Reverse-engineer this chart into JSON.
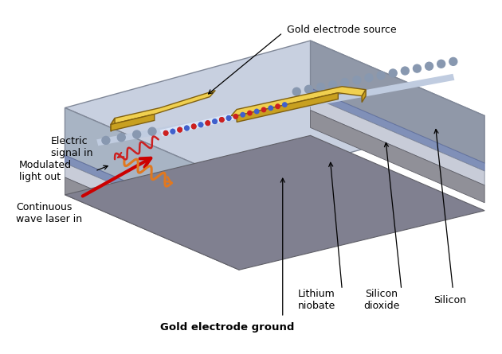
{
  "background_color": "#ffffff",
  "labels": {
    "gold_electrode_source": "Gold electrode source",
    "electric_signal_in": "Electric\nsignal in",
    "modulated_light_out": "Modulated\nlight out",
    "continuous_wave_laser_in": "Continuous\nwave laser in",
    "gold_electrode_ground": "Gold electrode ground",
    "lithium_niobate": "Lithium\nniobate",
    "silicon_dioxide": "Silicon\ndioxide",
    "silicon": "Silicon"
  },
  "colors": {
    "top_face": "#c8d0e0",
    "front_face": "#a8b4c4",
    "right_face": "#9098a8",
    "ln_layer": "#8090b8",
    "sio2_layer": "#c8ccd8",
    "si_layer": "#909098",
    "gold_top": "#f0d050",
    "gold_side": "#c8a020",
    "gold_edge": "#806010",
    "red_arrow": "#cc0000",
    "orange_wave": "#e07820",
    "red_wave": "#cc2020",
    "dots_color": "#8898b0",
    "wg_glow": "#dce8f8",
    "modulation_red": "#cc2020",
    "modulation_blue": "#4060cc",
    "text_color": "#000000",
    "bg": "#ffffff"
  }
}
